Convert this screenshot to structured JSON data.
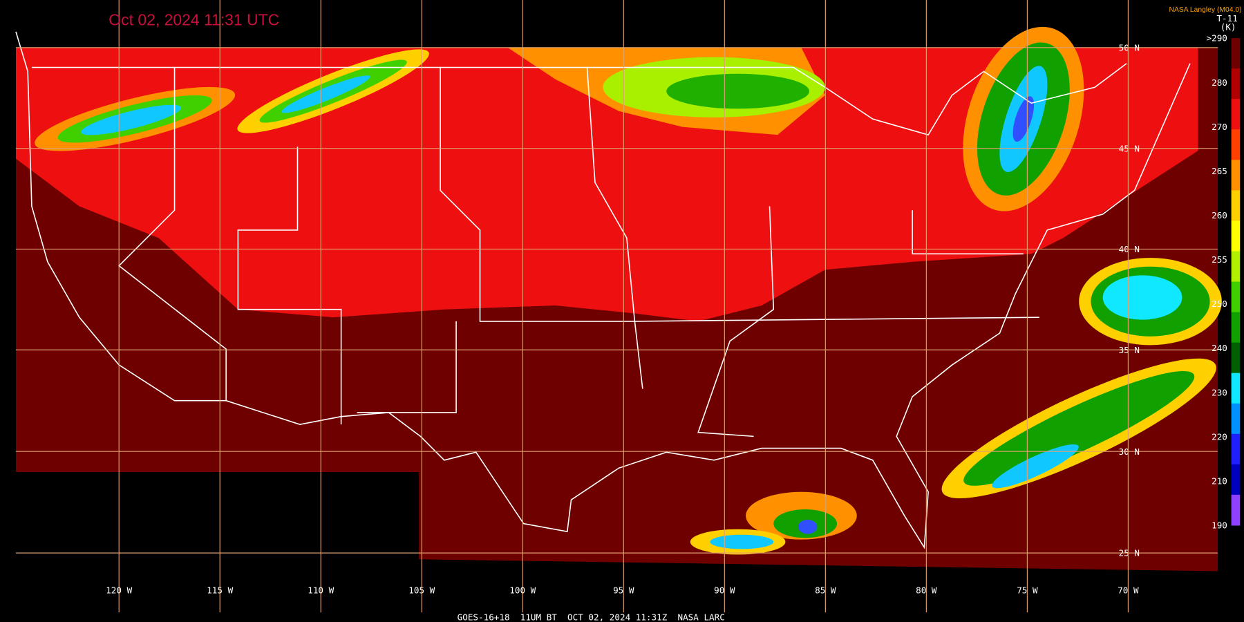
{
  "header": {
    "title": "Oct 02, 2024 11:31 UTC",
    "credit": "NASA Langley (M04.0)",
    "channel": "T-11",
    "unit": "(K)"
  },
  "colorbar": {
    "labels": [
      ">290",
      280,
      270,
      265,
      260,
      255,
      250,
      240,
      230,
      220,
      210,
      190
    ]
  },
  "grid": {
    "latitude_labels": [
      "50 N",
      "45 N",
      "40 N",
      "35 N",
      "30 N",
      "25 N"
    ],
    "longitude_labels": [
      "120 W",
      "115 W",
      "110 W",
      "105 W",
      "100 W",
      "95 W",
      "90 W",
      "85 W",
      "80 W",
      "75 W",
      "70 W"
    ]
  },
  "footer": "GOES-16+18  11UM BT  OCT 02, 2024 11:31Z  NASA LARC"
}
